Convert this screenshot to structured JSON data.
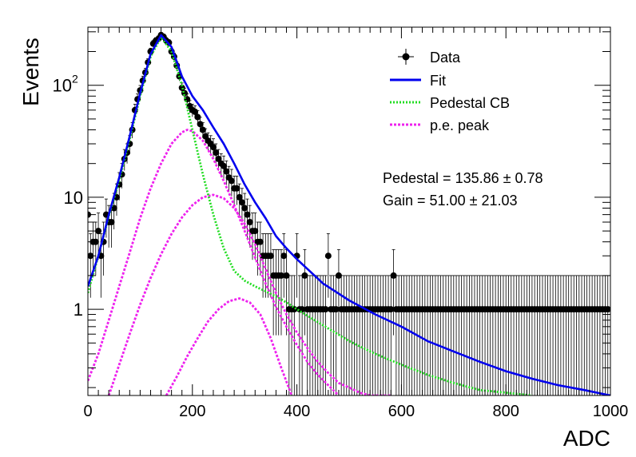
{
  "chart_data": {
    "type": "scatter",
    "xlabel": "ADC",
    "ylabel": "Events",
    "xlim": [
      0,
      1000
    ],
    "ylim": [
      0.17,
      330
    ],
    "yscale": "log",
    "x_ticks": [
      "0",
      "200",
      "400",
      "600",
      "800",
      "1000"
    ],
    "y_ticks": [
      {
        "value": 1,
        "label": "1"
      },
      {
        "value": 10,
        "label": "10"
      },
      {
        "value": 100,
        "label": "10",
        "exponent": "2"
      }
    ],
    "grid": false,
    "legend_position": "top-right",
    "legend": [
      {
        "label": "Data",
        "series": "data"
      },
      {
        "label": "Fit",
        "series": "fit"
      },
      {
        "label": "Pedestal CB",
        "series": "pedestal"
      },
      {
        "label": "p.e. peak",
        "series": "pe"
      }
    ],
    "annotations": [
      {
        "text": "Pedestal = 135.86",
        "pm": "±",
        "err": "0.78"
      },
      {
        "text": "Gain = 51.00",
        "pm": "±",
        "err": "21.03"
      }
    ],
    "series": [
      {
        "id": "data",
        "label": "Data",
        "kind": "points",
        "color": "#000000",
        "x": [
          0,
          5,
          10,
          15,
          20,
          25,
          30,
          35,
          40,
          45,
          50,
          55,
          60,
          65,
          70,
          75,
          80,
          85,
          90,
          95,
          100,
          105,
          110,
          115,
          120,
          125,
          130,
          135,
          140,
          145,
          150,
          155,
          160,
          165,
          170,
          175,
          180,
          185,
          190,
          195,
          200,
          205,
          210,
          215,
          220,
          225,
          230,
          235,
          240,
          245,
          250,
          255,
          260,
          265,
          270,
          275,
          280,
          285,
          290,
          295,
          300,
          305,
          310,
          315,
          320,
          325,
          330,
          335,
          340,
          345,
          350,
          355,
          360,
          365,
          370,
          375,
          380,
          385,
          390,
          395,
          400,
          405,
          410,
          415,
          420,
          425,
          430,
          435,
          440,
          445,
          450,
          455,
          460,
          465,
          470,
          475,
          480,
          485,
          490,
          495,
          500,
          505,
          510,
          515,
          520,
          525,
          530,
          535,
          540,
          545,
          550,
          555,
          560,
          565,
          570,
          575,
          580,
          585,
          590,
          595,
          600,
          605,
          610,
          615,
          620,
          625,
          630,
          635,
          640,
          645,
          650,
          655,
          660,
          665,
          670,
          675,
          680,
          685,
          690,
          695,
          700,
          705,
          710,
          715,
          720,
          725,
          730,
          735,
          740,
          745,
          750,
          755,
          760,
          765,
          770,
          775,
          780,
          785,
          790,
          795,
          800,
          805,
          810,
          815,
          820,
          825,
          830,
          835,
          840,
          845,
          850,
          855,
          860,
          865,
          870,
          875,
          880,
          885,
          890,
          895,
          900,
          905,
          910,
          915,
          920,
          925,
          930,
          935,
          940,
          945,
          950,
          955,
          960,
          965,
          970,
          975,
          980,
          985,
          990,
          995
        ],
        "y": [
          7,
          3,
          4,
          4,
          5,
          3,
          4,
          7,
          6,
          6,
          8,
          10,
          13,
          16,
          22,
          25,
          30,
          40,
          60,
          75,
          90,
          110,
          130,
          160,
          200,
          235,
          250,
          260,
          280,
          270,
          250,
          240,
          200,
          180,
          150,
          120,
          95,
          85,
          75,
          65,
          60,
          58,
          52,
          45,
          40,
          35,
          32,
          30,
          28,
          25,
          22,
          20,
          19,
          17,
          15,
          14,
          12,
          12,
          10,
          9,
          8,
          7,
          6,
          5,
          5,
          4,
          4,
          3,
          3,
          3,
          3,
          2,
          2,
          2,
          2,
          3,
          2,
          1,
          1,
          1,
          3,
          1,
          1,
          2,
          1,
          1,
          1,
          1,
          1,
          1,
          1,
          1,
          3,
          1,
          1,
          1,
          2,
          1,
          1,
          1,
          1,
          1,
          1,
          1,
          1,
          1,
          1,
          1,
          1,
          1,
          1,
          1,
          1,
          1,
          1,
          1,
          1,
          2,
          1,
          1,
          1,
          1,
          1,
          1,
          1,
          1,
          1,
          1,
          1,
          1,
          1,
          1,
          1,
          1,
          1,
          1,
          1,
          1,
          1,
          1,
          1,
          1,
          1,
          1,
          1,
          1,
          1,
          1,
          1,
          1,
          1,
          1,
          1,
          1,
          1,
          1,
          1,
          1,
          1,
          1,
          1,
          1,
          1,
          1,
          1,
          1,
          1,
          1,
          1,
          1,
          1,
          1,
          1,
          1,
          1,
          1,
          1,
          1,
          1,
          1,
          1,
          1,
          1,
          1,
          1,
          1,
          1,
          1,
          1,
          1,
          1,
          1,
          1,
          1,
          1,
          1,
          1,
          1,
          1,
          1
        ]
      },
      {
        "id": "fit",
        "label": "Fit",
        "kind": "line",
        "color": "#0000ee",
        "dash": "none",
        "x": [
          0,
          20,
          40,
          60,
          80,
          100,
          120,
          140,
          160,
          180,
          200,
          220,
          240,
          260,
          280,
          300,
          320,
          340,
          360,
          380,
          400,
          450,
          500,
          550,
          600,
          650,
          700,
          750,
          800,
          850,
          900,
          950,
          1000
        ],
        "y": [
          1.6,
          3.0,
          7.0,
          15,
          35,
          85,
          190,
          280,
          220,
          120,
          80,
          60,
          42,
          30,
          20,
          13,
          9,
          6.5,
          4.5,
          3.5,
          2.8,
          1.7,
          1.2,
          0.9,
          0.7,
          0.52,
          0.42,
          0.34,
          0.28,
          0.24,
          0.21,
          0.19,
          0.17
        ]
      },
      {
        "id": "pedestal",
        "label": "Pedestal CB",
        "kind": "line",
        "color": "#22dd22",
        "dash": "dotted",
        "x": [
          0,
          20,
          40,
          60,
          80,
          100,
          120,
          140,
          160,
          180,
          200,
          220,
          240,
          260,
          280,
          300,
          320,
          340,
          360,
          380,
          400,
          450,
          500,
          550,
          600,
          650,
          700,
          750,
          800,
          850
        ],
        "y": [
          1.4,
          3.0,
          6.8,
          14,
          33,
          80,
          180,
          270,
          200,
          100,
          40,
          16,
          7,
          3.5,
          2.2,
          1.8,
          1.6,
          1.45,
          1.3,
          1.15,
          1.0,
          0.72,
          0.52,
          0.4,
          0.32,
          0.26,
          0.22,
          0.19,
          0.18,
          0.17
        ]
      },
      {
        "id": "pe1",
        "label": "p.e. peak",
        "kind": "line",
        "color": "#ee22ee",
        "dash": "dotted",
        "x": [
          0,
          20,
          40,
          60,
          80,
          100,
          120,
          140,
          160,
          180,
          190,
          200,
          220,
          240,
          260,
          280,
          300,
          320,
          340,
          360,
          380,
          400,
          420,
          440,
          460,
          480
        ],
        "y": [
          0.23,
          0.4,
          0.8,
          1.6,
          3.2,
          6.5,
          12,
          20,
          30,
          38,
          40,
          39,
          32,
          22,
          14,
          8.5,
          5.0,
          2.9,
          1.7,
          1.05,
          0.7,
          0.48,
          0.34,
          0.26,
          0.21,
          0.17
        ]
      },
      {
        "id": "pe2",
        "label": "p.e. peak",
        "kind": "line",
        "color": "#ee22ee",
        "dash": "dotted",
        "x": [
          40,
          60,
          80,
          100,
          120,
          140,
          160,
          180,
          200,
          220,
          240,
          260,
          280,
          300,
          320,
          340,
          360,
          380,
          400,
          420,
          440,
          460,
          480,
          500,
          520,
          540,
          560,
          580
        ],
        "y": [
          0.17,
          0.32,
          0.6,
          1.1,
          1.9,
          3.1,
          4.7,
          6.6,
          8.5,
          10,
          10.5,
          9.8,
          8.0,
          5.8,
          3.8,
          2.3,
          1.4,
          0.9,
          0.62,
          0.45,
          0.34,
          0.27,
          0.22,
          0.2,
          0.18,
          0.17,
          0.17,
          0.17
        ]
      },
      {
        "id": "pe3",
        "label": "p.e. peak",
        "kind": "line",
        "color": "#ee22ee",
        "dash": "dotted",
        "x": [
          150,
          170,
          190,
          210,
          230,
          250,
          270,
          290,
          310,
          330,
          350,
          370,
          390
        ],
        "y": [
          0.17,
          0.25,
          0.38,
          0.55,
          0.78,
          1.0,
          1.18,
          1.25,
          1.15,
          0.9,
          0.55,
          0.3,
          0.17
        ]
      }
    ]
  }
}
